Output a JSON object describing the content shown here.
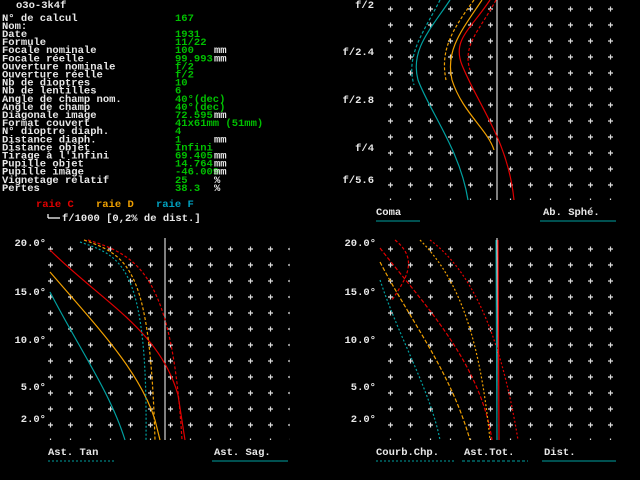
{
  "header": {
    "title": "o3o-3k4f"
  },
  "parameters": [
    {
      "label": "N° de calcul",
      "value": "167"
    },
    {
      "label": "Nom:"
    },
    {
      "label": "Date",
      "value": "1931"
    },
    {
      "label": "Formule",
      "value": "11/22"
    },
    {
      "label": "Focale nominale",
      "value": "100",
      "unit": "mm"
    },
    {
      "label": "Focale réelle",
      "value": "99.993",
      "unit": "mm"
    },
    {
      "label": "Ouverture nominale",
      "value": "f/2"
    },
    {
      "label": "Ouverture réelle",
      "value": "f/2"
    },
    {
      "label": "Nb de dioptres",
      "value": "10"
    },
    {
      "label": "Nb de lentilles",
      "value": "6"
    },
    {
      "label": "Angle de champ nom.",
      "value": "40°(dec)"
    },
    {
      "label": "Angle de champ",
      "value": "40°(dec)"
    },
    {
      "label": "Diagonale image",
      "value": "72.595",
      "unit": "mm"
    },
    {
      "label": "Format couvert",
      "value": "41x61mm (51mm)"
    },
    {
      "label": "N° dioptre diaph.",
      "value": "4"
    },
    {
      "label": "Distance diaph.",
      "value": "1",
      "unit": "mm"
    },
    {
      "label": "Distance objet",
      "value": "Infini"
    },
    {
      "label": "Tirage à l'infini",
      "value": "69.405",
      "unit": "mm"
    },
    {
      "label": "Pupille objet",
      "value": "14.764",
      "unit": "mm"
    },
    {
      "label": "Pupille image",
      "value": "-46.009",
      "unit": "mm"
    },
    {
      "label": "Vignetage relatif",
      "value": "25",
      "unit": "%"
    },
    {
      "label": "Pertes",
      "value": "38.3",
      "unit": "%"
    }
  ],
  "legend": {
    "lines": [
      "raie C",
      "raie D",
      "raie F"
    ],
    "scale": "f/1000 [0,2% de dist.]"
  },
  "aperture_panel": {
    "labels": [
      "f/2",
      "f/2.4",
      "f/2.8",
      "f/4",
      "f/5.6"
    ],
    "captions": [
      "Coma",
      "Ab. Sphé."
    ]
  },
  "astig_panel": {
    "labels": [
      "20.0°",
      "15.0°",
      "10.0°",
      "5.0°",
      "2.0°"
    ],
    "captions": [
      "Ast. Tan",
      "Ast. Sag."
    ]
  },
  "field_panel": {
    "labels": [
      "20.0°",
      "15.0°",
      "10.0°",
      "5.0°",
      "2.0°"
    ],
    "captions": [
      "Courb.Chp.",
      "Ast.Tot.",
      "Dist."
    ]
  }
}
